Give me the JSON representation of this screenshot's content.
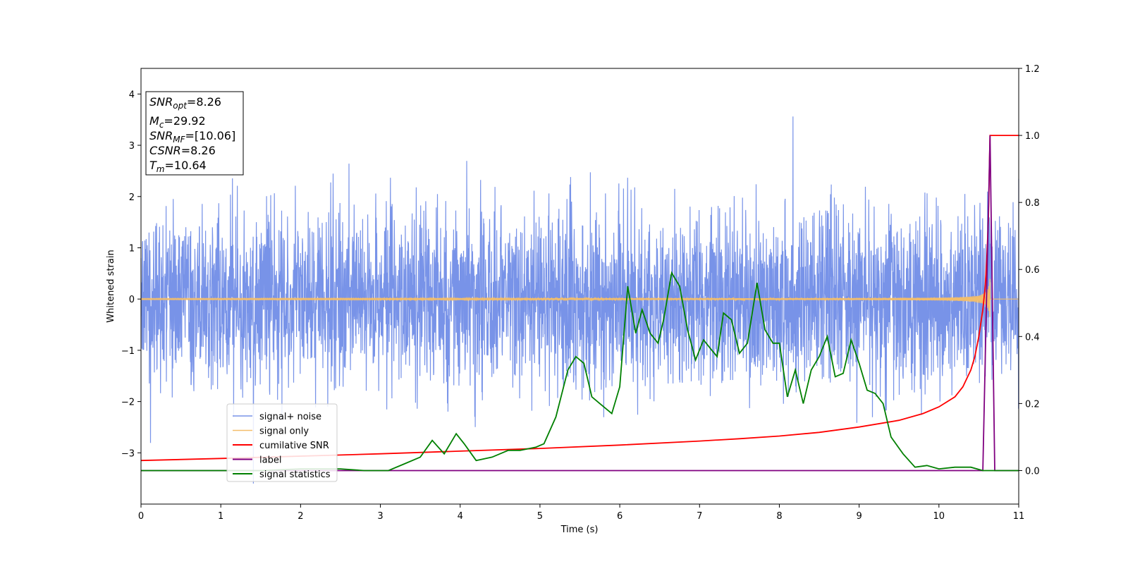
{
  "chart_data": {
    "type": "line",
    "xlabel": "Time (s)",
    "ylabel": "Whitened strain",
    "xlim": [
      0,
      11
    ],
    "ylim": [
      -4,
      4.5
    ],
    "y2lim": [
      -0.1,
      1.2
    ],
    "xticks": [
      "0",
      "1",
      "2",
      "3",
      "4",
      "5",
      "6",
      "7",
      "8",
      "9",
      "10",
      "11"
    ],
    "yticks": [
      "−3",
      "−2",
      "−1",
      "0",
      "1",
      "2",
      "3",
      "4"
    ],
    "y2ticks": [
      "0.0",
      "0.2",
      "0.4",
      "0.6",
      "0.8",
      "1.0",
      "1.2"
    ],
    "legend_position": "lower-left",
    "annotation": {
      "lines": [
        {
          "main": "SNR",
          "sub": "opt",
          "rest": "=8.26"
        },
        {
          "main": "M",
          "sub": "c",
          "rest": "=29.92"
        },
        {
          "main": "SNR",
          "sub": "MF",
          "rest": "=[10.06]"
        },
        {
          "main": "CSNR",
          "sub": "",
          "rest": "=8.26"
        },
        {
          "main": "T",
          "sub": "m",
          "rest": "=10.64"
        }
      ]
    },
    "series": [
      {
        "name": "signal+ noise",
        "color": "#7893e8",
        "axis": "left",
        "noise_std": 0.9,
        "duration": 11,
        "merger_time": 10.64
      },
      {
        "name": "signal only",
        "color": "#f3be6b",
        "axis": "left",
        "merger_time": 10.64,
        "peak_amplitude": 0.75
      },
      {
        "name": "cumilative SNR",
        "color": "#ff0000",
        "axis": "right",
        "points": [
          [
            0,
            0.03
          ],
          [
            1,
            0.036
          ],
          [
            2,
            0.043
          ],
          [
            3,
            0.05
          ],
          [
            4,
            0.058
          ],
          [
            5,
            0.066
          ],
          [
            6,
            0.076
          ],
          [
            7,
            0.088
          ],
          [
            7.5,
            0.095
          ],
          [
            8,
            0.103
          ],
          [
            8.5,
            0.114
          ],
          [
            9,
            0.13
          ],
          [
            9.5,
            0.15
          ],
          [
            9.8,
            0.17
          ],
          [
            10,
            0.19
          ],
          [
            10.2,
            0.22
          ],
          [
            10.3,
            0.25
          ],
          [
            10.4,
            0.3
          ],
          [
            10.45,
            0.34
          ],
          [
            10.5,
            0.4
          ],
          [
            10.55,
            0.48
          ],
          [
            10.58,
            0.55
          ],
          [
            10.6,
            0.63
          ],
          [
            10.62,
            0.75
          ],
          [
            10.64,
            1.0
          ],
          [
            11,
            1.0
          ]
        ]
      },
      {
        "name": "label",
        "color": "#800080",
        "axis": "right",
        "points": [
          [
            0,
            0.0
          ],
          [
            10.55,
            0.0
          ],
          [
            10.64,
            1.0
          ],
          [
            10.7,
            0.0
          ],
          [
            11,
            0.0
          ]
        ]
      },
      {
        "name": "signal statistics",
        "color": "#008000",
        "axis": "right",
        "points": [
          [
            0,
            0.0
          ],
          [
            0.5,
            0.0
          ],
          [
            1,
            0.0
          ],
          [
            1.5,
            0.0
          ],
          [
            2,
            0.005
          ],
          [
            2.5,
            0.005
          ],
          [
            2.8,
            0.0
          ],
          [
            3.1,
            0.0
          ],
          [
            3.3,
            0.02
          ],
          [
            3.5,
            0.04
          ],
          [
            3.65,
            0.09
          ],
          [
            3.8,
            0.05
          ],
          [
            3.95,
            0.11
          ],
          [
            4.05,
            0.08
          ],
          [
            4.2,
            0.03
          ],
          [
            4.4,
            0.04
          ],
          [
            4.6,
            0.06
          ],
          [
            4.75,
            0.06
          ],
          [
            4.95,
            0.07
          ],
          [
            5.05,
            0.08
          ],
          [
            5.2,
            0.16
          ],
          [
            5.35,
            0.3
          ],
          [
            5.45,
            0.34
          ],
          [
            5.55,
            0.32
          ],
          [
            5.65,
            0.22
          ],
          [
            5.75,
            0.2
          ],
          [
            5.9,
            0.17
          ],
          [
            6.0,
            0.25
          ],
          [
            6.1,
            0.55
          ],
          [
            6.2,
            0.41
          ],
          [
            6.28,
            0.48
          ],
          [
            6.38,
            0.41
          ],
          [
            6.48,
            0.38
          ],
          [
            6.55,
            0.45
          ],
          [
            6.65,
            0.59
          ],
          [
            6.75,
            0.55
          ],
          [
            6.85,
            0.42
          ],
          [
            6.95,
            0.33
          ],
          [
            7.05,
            0.39
          ],
          [
            7.15,
            0.36
          ],
          [
            7.22,
            0.34
          ],
          [
            7.3,
            0.47
          ],
          [
            7.4,
            0.45
          ],
          [
            7.5,
            0.35
          ],
          [
            7.6,
            0.38
          ],
          [
            7.72,
            0.56
          ],
          [
            7.82,
            0.42
          ],
          [
            7.92,
            0.38
          ],
          [
            8.0,
            0.38
          ],
          [
            8.1,
            0.22
          ],
          [
            8.2,
            0.3
          ],
          [
            8.3,
            0.2
          ],
          [
            8.4,
            0.3
          ],
          [
            8.5,
            0.34
          ],
          [
            8.6,
            0.4
          ],
          [
            8.7,
            0.28
          ],
          [
            8.8,
            0.29
          ],
          [
            8.9,
            0.39
          ],
          [
            9.0,
            0.32
          ],
          [
            9.1,
            0.24
          ],
          [
            9.2,
            0.23
          ],
          [
            9.3,
            0.2
          ],
          [
            9.4,
            0.1
          ],
          [
            9.55,
            0.05
          ],
          [
            9.7,
            0.01
          ],
          [
            9.85,
            0.015
          ],
          [
            10.0,
            0.005
          ],
          [
            10.2,
            0.01
          ],
          [
            10.4,
            0.01
          ],
          [
            10.55,
            0.0
          ],
          [
            10.64,
            0.0
          ],
          [
            10.75,
            0.0
          ],
          [
            11,
            0.0
          ]
        ]
      }
    ]
  }
}
